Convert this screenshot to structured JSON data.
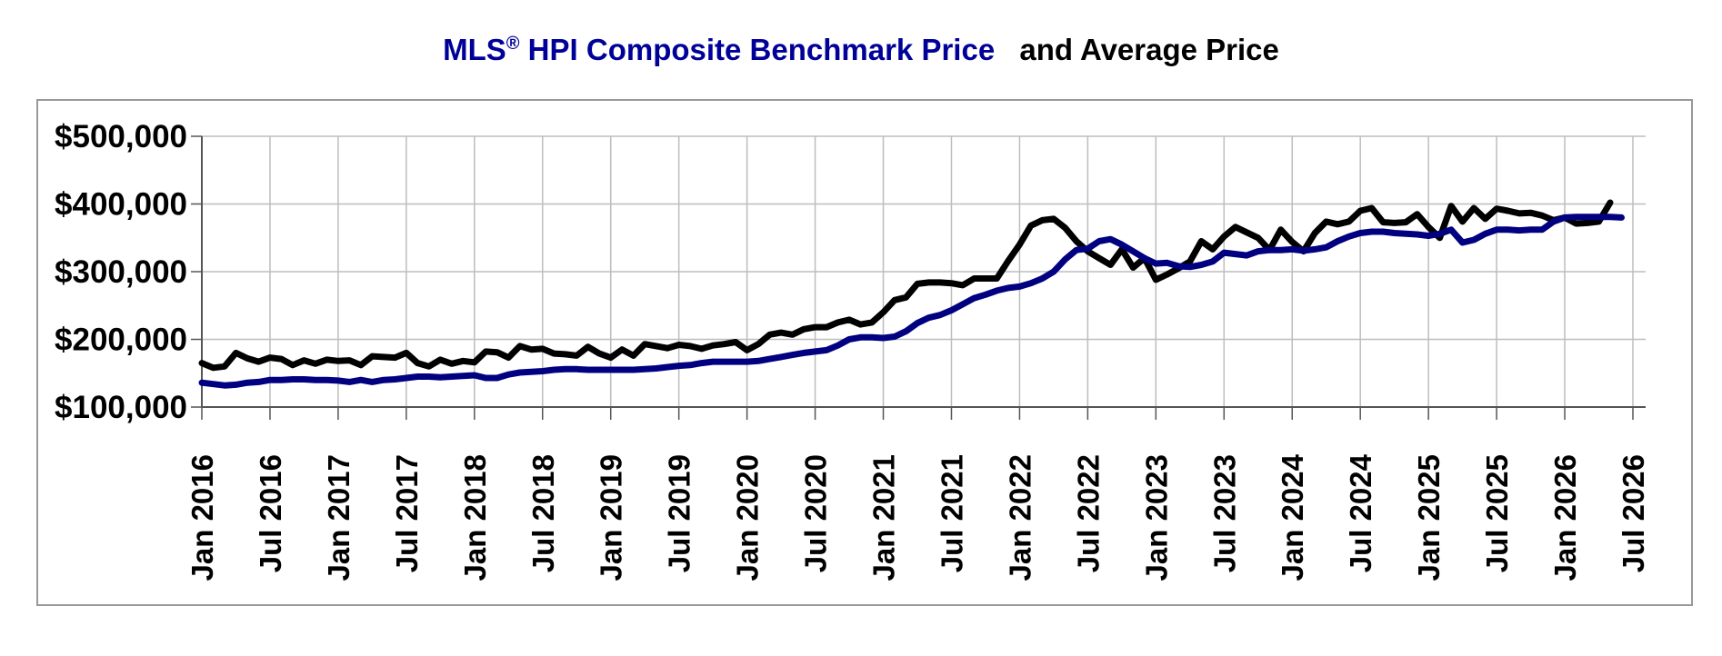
{
  "colors": {
    "hpi": "#000080",
    "average": "#000000",
    "title_hpi": "#000099",
    "title_avg": "#000000",
    "grid": "#bdbdbd",
    "frame": "#999999"
  },
  "chart_data": {
    "type": "line",
    "title_part1": "MLS",
    "title_reg": "®",
    "title_part2": " HPI Composite Benchmark Price",
    "title_part3": "and Average Price",
    "xlabel": "",
    "ylabel": "",
    "ylim": [
      100000,
      500000
    ],
    "yticks": [
      100000,
      200000,
      300000,
      400000,
      500000
    ],
    "ytick_labels": [
      "$100,000",
      "$200,000",
      "$300,000",
      "$400,000",
      "$500,000"
    ],
    "x_start": "2016-01",
    "xlim_months": [
      0,
      126
    ],
    "xtick_labels": [
      "Jan 2016",
      "Jul 2016",
      "Jan 2017",
      "Jul 2017",
      "Jan 2018",
      "Jul 2018",
      "Jan 2019",
      "Jul 2019",
      "Jan 2020",
      "Jul 2020",
      "Jan 2021",
      "Jul 2021",
      "Jan 2022",
      "Jul 2022",
      "Jan 2023",
      "Jul 2023",
      "Jan 2024",
      "Jul 2024",
      "Jan 2025",
      "Jul 2025",
      "Jan 2026",
      "Jul 2026"
    ],
    "grid": true,
    "legend": "none",
    "series": [
      {
        "key": "average",
        "values": [
          165000,
          158000,
          160000,
          180000,
          172000,
          167000,
          173000,
          171000,
          162000,
          169000,
          164000,
          170000,
          168000,
          169000,
          162000,
          175000,
          174000,
          173000,
          180000,
          165000,
          160000,
          170000,
          164000,
          168000,
          166000,
          182000,
          181000,
          173000,
          190000,
          185000,
          186000,
          179000,
          178000,
          176000,
          189000,
          179000,
          173000,
          185000,
          176000,
          193000,
          190000,
          187000,
          192000,
          190000,
          186000,
          191000,
          193000,
          196000,
          184000,
          193000,
          207000,
          210000,
          207000,
          215000,
          218000,
          218000,
          225000,
          229000,
          222000,
          225000,
          240000,
          258000,
          262000,
          282000,
          284000,
          284000,
          283000,
          280000,
          290000,
          290000,
          290000,
          316000,
          340000,
          368000,
          376000,
          378000,
          365000,
          345000,
          330000,
          320000,
          310000,
          333000,
          306000,
          320000,
          288000,
          296000,
          305000,
          315000,
          345000,
          333000,
          352000,
          366000,
          358000,
          350000,
          332000,
          362000,
          344000,
          330000,
          357000,
          374000,
          370000,
          374000,
          390000,
          394000,
          373000,
          372000,
          373000,
          385000,
          366000,
          350000,
          397000,
          374000,
          394000,
          378000,
          393000,
          390000,
          386000,
          387000,
          383000,
          376000,
          380000,
          371000,
          372000,
          374000,
          402000
        ],
        "name": ""
      },
      {
        "key": "hpi",
        "values": [
          136000,
          134000,
          132000,
          133000,
          136000,
          137000,
          140000,
          140000,
          141000,
          141000,
          140000,
          140000,
          139000,
          137000,
          140000,
          137000,
          140000,
          141000,
          143000,
          145000,
          145000,
          144000,
          145000,
          146000,
          147000,
          143000,
          143000,
          148000,
          151000,
          152000,
          153000,
          155000,
          156000,
          156000,
          155000,
          155000,
          155000,
          155000,
          155000,
          156000,
          157000,
          159000,
          161000,
          162000,
          165000,
          167000,
          167000,
          167000,
          167000,
          168000,
          171000,
          174000,
          177000,
          180000,
          182000,
          184000,
          191000,
          200000,
          203000,
          203000,
          202000,
          204000,
          212000,
          224000,
          232000,
          236000,
          243000,
          252000,
          261000,
          266000,
          272000,
          276000,
          278000,
          283000,
          290000,
          300000,
          318000,
          332000,
          334000,
          345000,
          348000,
          340000,
          330000,
          320000,
          312000,
          313000,
          308000,
          307000,
          310000,
          315000,
          328000,
          326000,
          324000,
          330000,
          332000,
          332000,
          333000,
          331000,
          333000,
          336000,
          345000,
          352000,
          357000,
          359000,
          359000,
          357000,
          356000,
          355000,
          353000,
          356000,
          362000,
          343000,
          347000,
          356000,
          362000,
          362000,
          361000,
          362000,
          362000,
          374000,
          380000,
          381000,
          381000,
          381000,
          381000,
          380000
        ],
        "name": ""
      }
    ]
  }
}
